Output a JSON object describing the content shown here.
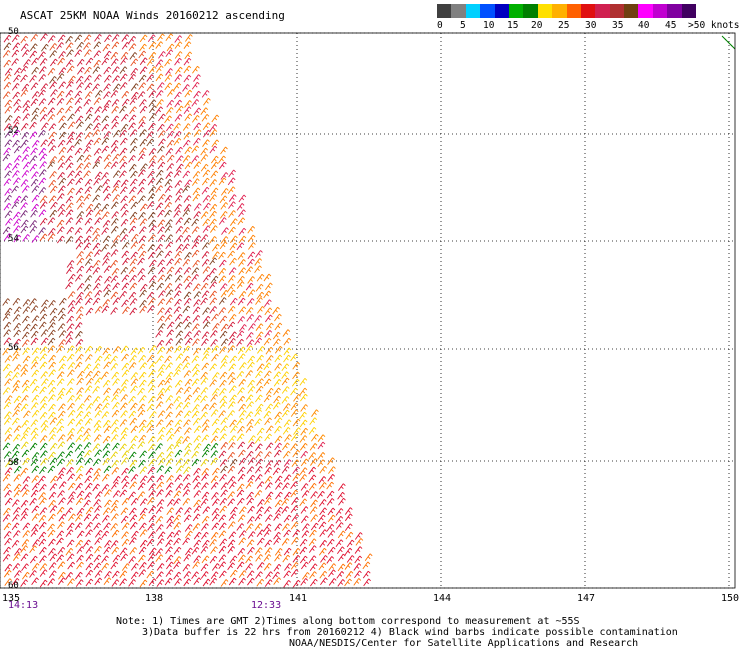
{
  "title": "ASCAT 25KM NOAA Winds 20160212 ascending",
  "colorbar": {
    "colors": [
      "#404040",
      "#808080",
      "#00d0ff",
      "#0050ff",
      "#0000c0",
      "#00b000",
      "#008000",
      "#ffe000",
      "#ffb000",
      "#ff6000",
      "#e01010",
      "#d02050",
      "#b03030",
      "#704010",
      "#ff00ff",
      "#c000d0",
      "#8000a0",
      "#400060"
    ],
    "labels": [
      "0",
      "5",
      "10",
      "15",
      "20",
      "25",
      "30",
      "35",
      "40",
      "45"
    ],
    "units_label": ">50 knots"
  },
  "axes": {
    "lat_labels": [
      "50",
      "52",
      "54",
      "56",
      "58",
      "60"
    ],
    "lon_labels": [
      "135",
      "138",
      "141",
      "144",
      "147",
      "150"
    ]
  },
  "times": [
    "14:13",
    "12:33"
  ],
  "notes": {
    "line1": "Note: 1) Times are GMT 2)Times along bottom correspond to measurement at ~55S",
    "line2": "3)Data buffer is 22 hrs from 20160212 4) Black wind barbs indicate possible contamination",
    "line3": "NOAA/NESDIS/Center for Satellite Applications and Research"
  }
}
